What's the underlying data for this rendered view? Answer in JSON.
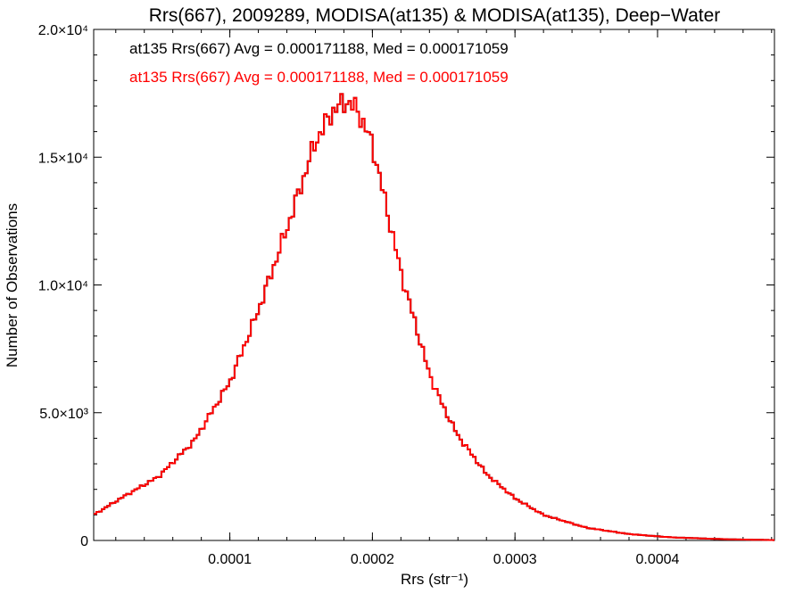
{
  "chart_data": {
    "type": "histogram",
    "title": "Rrs(667), 2009289, MODISA(at135) & MODISA(at135), Deep−Water",
    "xlabel": "Rrs (str⁻¹)",
    "ylabel": "Number of Observations",
    "xlim": [
      4.5e-06,
      0.000482
    ],
    "ylim": [
      0,
      20000
    ],
    "x_ticks": [
      {
        "value": 0.0001,
        "label": "0.0001"
      },
      {
        "value": 0.0002,
        "label": "0.0002"
      },
      {
        "value": 0.0003,
        "label": "0.0003"
      },
      {
        "value": 0.0004,
        "label": "0.0004"
      }
    ],
    "y_ticks": [
      {
        "value": 0,
        "label": "0"
      },
      {
        "value": 5000,
        "label": "5.0×10³"
      },
      {
        "value": 10000,
        "label": "1.0×10⁴"
      },
      {
        "value": 15000,
        "label": "1.5×10⁴"
      },
      {
        "value": 20000,
        "label": "2.0×10⁴"
      }
    ],
    "bin_width": 1.9e-06,
    "series": [
      {
        "name": "at135 Rrs(667) Avg = 0.000171188, Med = 0.000171059",
        "color": "#000000",
        "profile": [
          [
            4.5e-06,
            1000
          ],
          [
            2.5e-05,
            1700
          ],
          [
            5e-05,
            2500
          ],
          [
            7.5e-05,
            3900
          ],
          [
            0.0001,
            6200
          ],
          [
            0.00012,
            9000
          ],
          [
            0.00014,
            12200
          ],
          [
            0.00016,
            15600
          ],
          [
            0.000172,
            16800
          ],
          [
            0.000182,
            17200
          ],
          [
            0.00019,
            16800
          ],
          [
            0.0002,
            15500
          ],
          [
            0.00021,
            13000
          ],
          [
            0.00022,
            10500
          ],
          [
            0.00023,
            8500
          ],
          [
            0.00024,
            6500
          ],
          [
            0.00025,
            5200
          ],
          [
            0.00026,
            4100
          ],
          [
            0.00028,
            2600
          ],
          [
            0.0003,
            1650
          ],
          [
            0.00032,
            1000
          ],
          [
            0.00035,
            500
          ],
          [
            0.00038,
            250
          ],
          [
            0.00041,
            120
          ],
          [
            0.00045,
            45
          ],
          [
            0.000482,
            15
          ]
        ]
      },
      {
        "name": "at135 Rrs(667) Avg = 0.000171188, Med = 0.000171059",
        "color": "#ff0000",
        "profile": [
          [
            4.5e-06,
            1000
          ],
          [
            2.5e-05,
            1700
          ],
          [
            5e-05,
            2500
          ],
          [
            7.5e-05,
            3900
          ],
          [
            0.0001,
            6200
          ],
          [
            0.00012,
            9000
          ],
          [
            0.00014,
            12200
          ],
          [
            0.00016,
            15600
          ],
          [
            0.000172,
            16800
          ],
          [
            0.000182,
            17200
          ],
          [
            0.00019,
            16800
          ],
          [
            0.0002,
            15500
          ],
          [
            0.00021,
            13000
          ],
          [
            0.00022,
            10500
          ],
          [
            0.00023,
            8500
          ],
          [
            0.00024,
            6500
          ],
          [
            0.00025,
            5200
          ],
          [
            0.00026,
            4100
          ],
          [
            0.00028,
            2600
          ],
          [
            0.0003,
            1650
          ],
          [
            0.00032,
            1000
          ],
          [
            0.00035,
            500
          ],
          [
            0.00038,
            250
          ],
          [
            0.00041,
            120
          ],
          [
            0.00045,
            45
          ],
          [
            0.000482,
            15
          ]
        ]
      }
    ],
    "legend": "top-left"
  }
}
